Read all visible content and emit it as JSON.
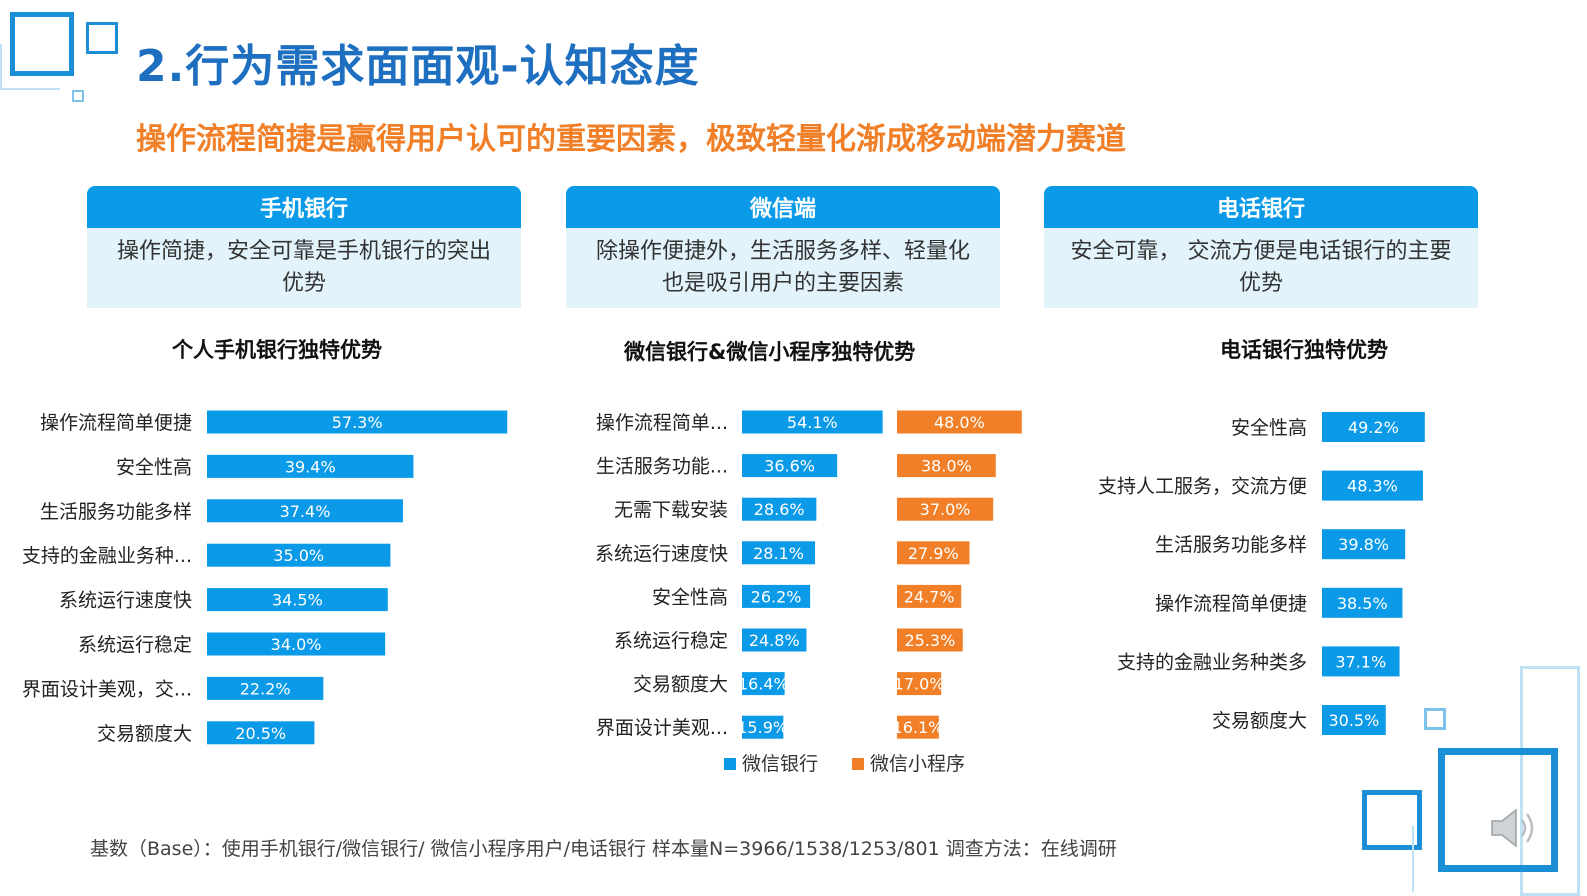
{
  "header": {
    "title": "2.行为需求面面观-认知态度",
    "subtitle": "操作流程简捷是赢得用户认可的重要因素，极致轻量化渐成移动端潜力赛道"
  },
  "panels": [
    {
      "head": "手机银行",
      "body_line1": "操作简捷，安全可靠是手机银行的突出",
      "body_line2": "优势"
    },
    {
      "head": "微信端",
      "body_line1": "除操作便捷外，生活服务多样、轻量化",
      "body_line2": "也是吸引用户的主要因素"
    },
    {
      "head": "电话银行",
      "body_line1": "安全可靠， 交流方便是电话银行的主要",
      "body_line2": "优势"
    }
  ],
  "footer": {
    "text": "基数（Base）：使用手机银行/微信银行/ 微信小程序用户/电话银行    样本量N=3966/1538/1253/801      调查方法：在线调研"
  },
  "colors": {
    "blue": "#0a9ae8",
    "orange": "#f07f27",
    "title_blue": "#1f6fc0"
  },
  "chart_data": [
    {
      "type": "bar",
      "orientation": "horizontal",
      "title": "个人手机银行独特优势",
      "categories": [
        "操作流程简单便捷",
        "安全性高",
        "生活服务功能多样",
        "支持的金融业务种...",
        "系统运行速度快",
        "系统运行稳定",
        "界面设计美观，交...",
        "交易额度大"
      ],
      "series": [
        {
          "values": [
            57.3,
            39.4,
            37.4,
            35.0,
            34.5,
            34.0,
            22.2,
            20.5
          ],
          "labels": [
            "57.3%",
            "39.4%",
            "37.4%",
            "35.0%",
            "34.5%",
            "34.0%",
            "22.2%",
            "20.5%"
          ],
          "color": "#0a9ae8"
        }
      ],
      "unit": "%"
    },
    {
      "type": "bar",
      "orientation": "horizontal",
      "title": "微信银行&微信小程序独特优势",
      "categories": [
        "操作流程简单...",
        "生活服务功能...",
        "无需下载安装",
        "系统运行速度快",
        "安全性高",
        "系统运行稳定",
        "交易额度大",
        "界面设计美观..."
      ],
      "series": [
        {
          "name": "微信银行",
          "values": [
            54.1,
            36.6,
            28.6,
            28.1,
            26.2,
            24.8,
            16.4,
            15.9
          ],
          "labels": [
            "54.1%",
            "36.6%",
            "28.6%",
            "28.1%",
            "26.2%",
            "24.8%",
            "16.4%",
            "15.9%"
          ],
          "color": "#0a9ae8"
        },
        {
          "name": "微信小程序",
          "values": [
            48.0,
            38.0,
            37.0,
            27.9,
            24.7,
            25.3,
            17.0,
            16.1
          ],
          "labels": [
            "48.0%",
            "38.0%",
            "37.0%",
            "27.9%",
            "24.7%",
            "25.3%",
            "17.0%",
            "16.1%"
          ],
          "color": "#f07f27"
        }
      ],
      "legend": "bottom",
      "unit": "%"
    },
    {
      "type": "bar",
      "orientation": "horizontal",
      "title": "电话银行独特优势",
      "categories": [
        "安全性高",
        "支持人工服务，交流方便",
        "生活服务功能多样",
        "操作流程简单便捷",
        "支持的金融业务种类多",
        "交易额度大"
      ],
      "series": [
        {
          "values": [
            49.2,
            48.3,
            39.8,
            38.5,
            37.1,
            30.5
          ],
          "labels": [
            "49.2%",
            "48.3%",
            "39.8%",
            "38.5%",
            "37.1%",
            "30.5%"
          ],
          "color": "#0a9ae8"
        }
      ],
      "unit": "%"
    }
  ]
}
